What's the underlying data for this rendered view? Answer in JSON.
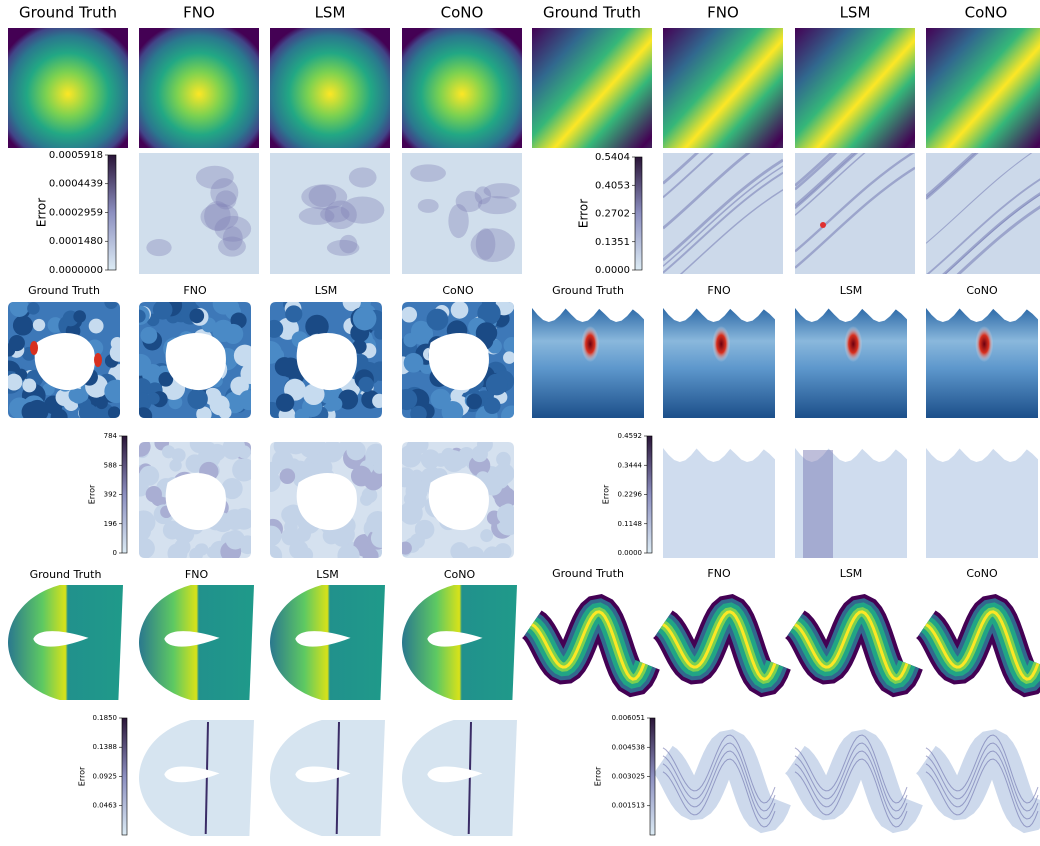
{
  "panels": [
    {
      "titles": [
        "Ground Truth",
        "FNO",
        "LSM",
        "CoNO"
      ],
      "colorbar": {
        "label": "Error",
        "lim": [
          0,
          0.0005918
        ],
        "ticks": [
          0.0005918,
          0.0004439,
          0.0002959,
          {
            "value": 0.000148,
            "label": "0.0001480"
          },
          {
            "value": 0,
            "label": "0.0000000"
          }
        ]
      }
    },
    {
      "titles": [
        "Ground Truth",
        "FNO",
        "LSM",
        "CoNO"
      ],
      "colorbar": {
        "label": "Error",
        "lim": [
          0,
          0.5404
        ],
        "ticks": [
          0.5404,
          0.4053,
          0.2702,
          0.1351,
          {
            "value": 0,
            "label": "0.0000"
          }
        ]
      }
    },
    {
      "titles": [
        "Ground Truth",
        "FNO",
        "LSM",
        "CoNO"
      ],
      "colorbar": {
        "label": "Error",
        "lim": [
          0,
          784
        ],
        "ticks": [
          784,
          588,
          392,
          196,
          0
        ]
      }
    },
    {
      "titles": [
        "Ground Truth",
        "FNO",
        "LSM",
        "CoNO"
      ],
      "colorbar": {
        "label": "Error",
        "lim": [
          0,
          0.4592
        ],
        "ticks": [
          0.4592,
          0.3444,
          0.2296,
          0.1148,
          {
            "value": 0,
            "label": "0.0000"
          }
        ]
      }
    },
    {
      "titles": [
        "Ground Truth",
        "FNO",
        "LSM",
        "CoNO"
      ],
      "colorbar": {
        "label": "Error",
        "lim": [
          0,
          0.185
        ],
        "ticks": [
          {
            "value": 0.185,
            "label": "0.1850"
          },
          0.1388,
          0.0925,
          0.0463
        ]
      }
    },
    {
      "titles": [
        "Ground Truth",
        "FNO",
        "LSM",
        "CoNO"
      ],
      "colorbar": {
        "label": "Error",
        "lim": [
          0,
          0.006051
        ],
        "ticks": [
          0.006051,
          0.004538,
          0.003025,
          0.001513
        ]
      }
    }
  ]
}
